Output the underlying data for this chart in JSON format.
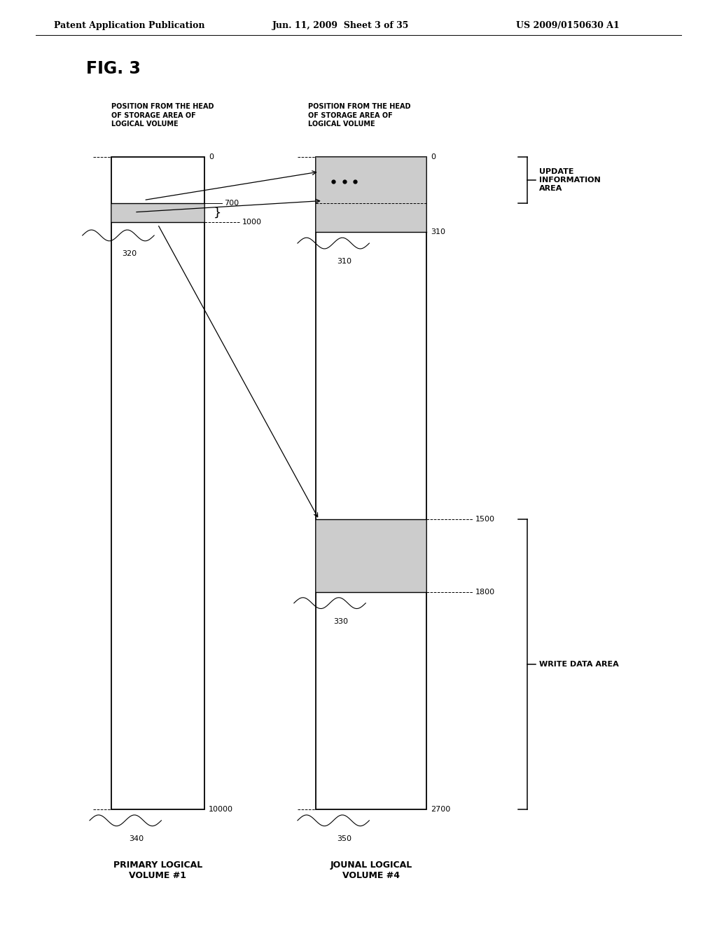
{
  "title": "FIG. 3",
  "patent_header_left": "Patent Application Publication",
  "patent_header_center": "Jun. 11, 2009  Sheet 3 of 35",
  "patent_header_right": "US 2009/0150630 A1",
  "bg_color": "#ffffff",
  "col1_label_top": "POSITION FROM THE HEAD\nOF STORAGE AREA OF\nLOGICAL VOLUME",
  "col2_label_top": "POSITION FROM THE HEAD\nOF STORAGE AREA OF\nLOGICAL VOLUME",
  "col1_bottom_label": "PRIMARY LOGICAL\nVOLUME #1",
  "col2_bottom_label": "JOUNAL LOGICAL\nVOLUME #4",
  "shaded_gray": "#aaaaaa",
  "shade_alpha": 0.6,
  "update_info_label": "UPDATE\nINFORMATION\nAREA",
  "write_data_label": "WRITE DATA AREA"
}
